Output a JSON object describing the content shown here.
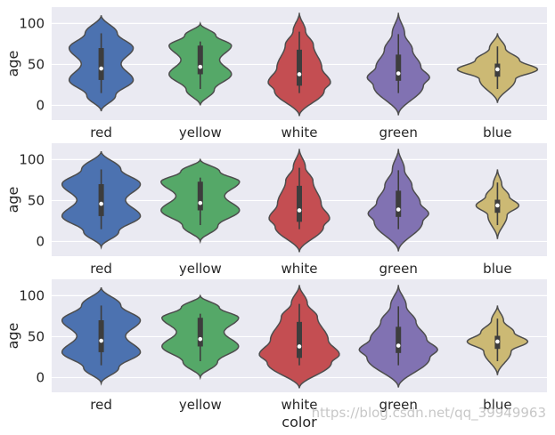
{
  "chart_data": [
    {
      "type": "violin",
      "categories": [
        "red",
        "yellow",
        "white",
        "green",
        "blue"
      ],
      "ylabel": "age",
      "xlabel": "",
      "yticks": [
        0,
        50,
        100
      ],
      "ylim": [
        -18,
        120
      ],
      "colors": [
        "#4c72b0",
        "#55a868",
        "#c44e52",
        "#8172b2",
        "#ccb974"
      ],
      "stats": [
        {
          "median": 45,
          "q1": 31,
          "q3": 70,
          "whisker_low": 15,
          "whisker_high": 88,
          "min": -7,
          "max": 110
        },
        {
          "median": 47,
          "q1": 38,
          "q3": 73,
          "whisker_low": 20,
          "whisker_high": 78,
          "min": 0,
          "max": 100
        },
        {
          "median": 38,
          "q1": 24,
          "q3": 68,
          "whisker_low": 15,
          "whisker_high": 90,
          "min": -13,
          "max": 113
        },
        {
          "median": 39,
          "q1": 30,
          "q3": 62,
          "whisker_low": 15,
          "whisker_high": 87,
          "min": -12,
          "max": 113
        },
        {
          "median": 44,
          "q1": 35,
          "q3": 51,
          "whisker_low": 20,
          "whisker_high": 72,
          "min": 3,
          "max": 88
        }
      ]
    },
    {
      "type": "violin",
      "categories": [
        "red",
        "yellow",
        "white",
        "green",
        "blue"
      ],
      "ylabel": "age",
      "xlabel": "",
      "yticks": [
        0,
        50,
        100
      ],
      "ylim": [
        -18,
        120
      ],
      "colors": [
        "#4c72b0",
        "#55a868",
        "#c44e52",
        "#8172b2",
        "#ccb974"
      ],
      "stats": [
        {
          "median": 46,
          "q1": 31,
          "q3": 70,
          "whisker_low": 15,
          "whisker_high": 88,
          "min": -7,
          "max": 110
        },
        {
          "median": 47,
          "q1": 38,
          "q3": 73,
          "whisker_low": 20,
          "whisker_high": 78,
          "min": 0,
          "max": 100
        },
        {
          "median": 38,
          "q1": 24,
          "q3": 68,
          "whisker_low": 15,
          "whisker_high": 90,
          "min": -13,
          "max": 113
        },
        {
          "median": 39,
          "q1": 30,
          "q3": 62,
          "whisker_low": 15,
          "whisker_high": 87,
          "min": -12,
          "max": 113
        },
        {
          "median": 44,
          "q1": 35,
          "q3": 51,
          "whisker_low": 20,
          "whisker_high": 72,
          "min": 3,
          "max": 88
        }
      ]
    },
    {
      "type": "violin",
      "categories": [
        "red",
        "yellow",
        "white",
        "green",
        "blue"
      ],
      "ylabel": "age",
      "xlabel": "color",
      "yticks": [
        0,
        50,
        100
      ],
      "ylim": [
        -18,
        120
      ],
      "colors": [
        "#4c72b0",
        "#55a868",
        "#c44e52",
        "#8172b2",
        "#ccb974"
      ],
      "stats": [
        {
          "median": 45,
          "q1": 31,
          "q3": 70,
          "whisker_low": 15,
          "whisker_high": 88,
          "min": -7,
          "max": 110
        },
        {
          "median": 47,
          "q1": 38,
          "q3": 73,
          "whisker_low": 20,
          "whisker_high": 78,
          "min": 0,
          "max": 100
        },
        {
          "median": 38,
          "q1": 24,
          "q3": 68,
          "whisker_low": 15,
          "whisker_high": 90,
          "min": -13,
          "max": 113
        },
        {
          "median": 39,
          "q1": 30,
          "q3": 62,
          "whisker_low": 15,
          "whisker_high": 87,
          "min": -12,
          "max": 113
        },
        {
          "median": 44,
          "q1": 35,
          "q3": 51,
          "whisker_low": 20,
          "whisker_high": 72,
          "min": 3,
          "max": 88
        }
      ]
    }
  ],
  "watermark": "https://blog.csdn.net/qq_39949963"
}
